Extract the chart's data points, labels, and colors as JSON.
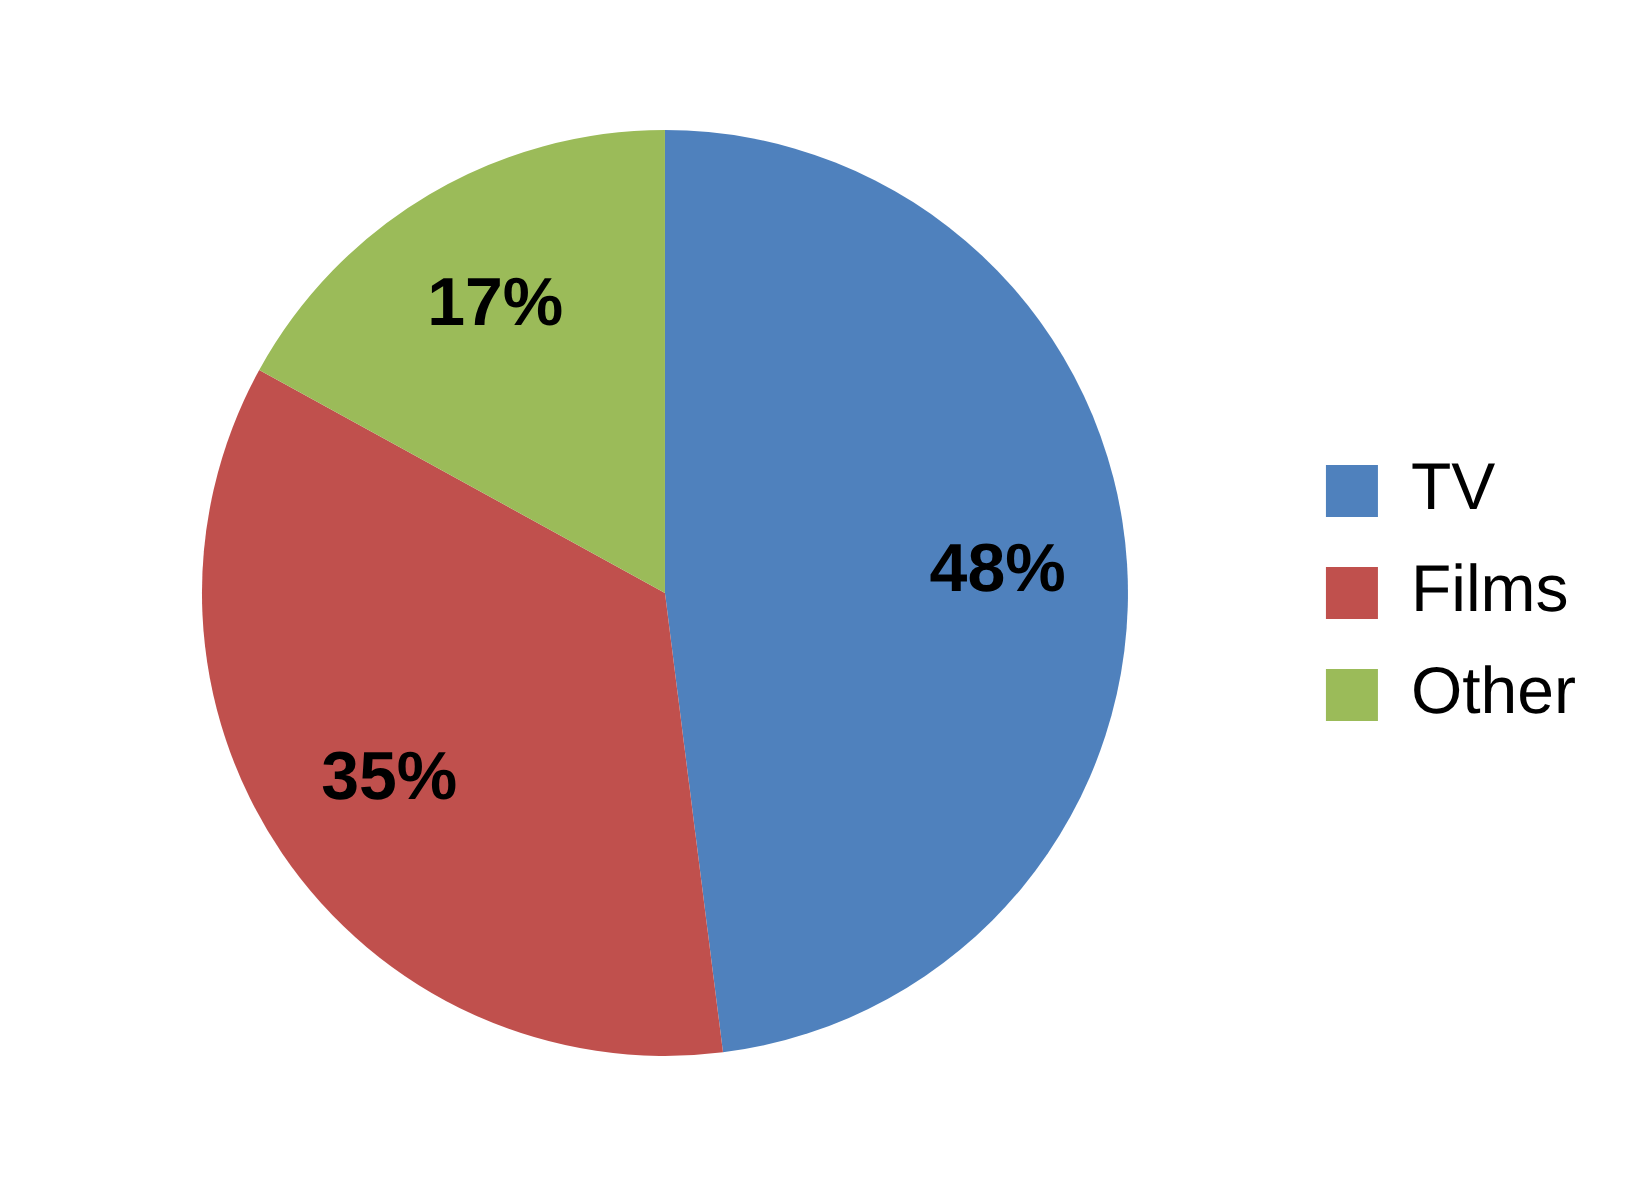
{
  "chart_data": {
    "type": "pie",
    "categories": [
      "TV",
      "Films",
      "Other"
    ],
    "values": [
      48,
      35,
      17
    ],
    "colors": [
      "#4f81bd",
      "#c0504d",
      "#9bbb59"
    ],
    "value_labels": [
      "48%",
      "35%",
      "17%"
    ],
    "legend": "right"
  }
}
